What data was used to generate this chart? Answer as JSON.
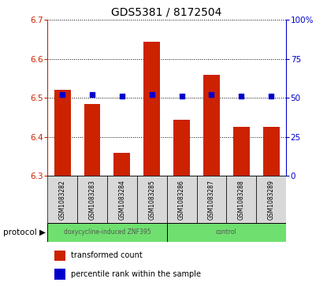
{
  "title": "GDS5381 / 8172504",
  "samples": [
    "GSM1083282",
    "GSM1083283",
    "GSM1083284",
    "GSM1083285",
    "GSM1083286",
    "GSM1083287",
    "GSM1083288",
    "GSM1083289"
  ],
  "red_values": [
    6.52,
    6.485,
    6.36,
    6.645,
    6.445,
    6.56,
    6.425,
    6.425
  ],
  "blue_values": [
    52,
    52,
    51,
    52,
    51,
    52,
    51,
    51
  ],
  "bar_bottom": 6.3,
  "ylim_left": [
    6.3,
    6.7
  ],
  "ylim_right": [
    0,
    100
  ],
  "yticks_left": [
    6.3,
    6.4,
    6.5,
    6.6,
    6.7
  ],
  "yticks_right": [
    0,
    25,
    50,
    75,
    100
  ],
  "protocol_groups": [
    {
      "label": "doxycycline-induced ZNF395",
      "start": 0,
      "end": 4,
      "color": "#6fe06f"
    },
    {
      "label": "control",
      "start": 4,
      "end": 8,
      "color": "#6fe06f"
    }
  ],
  "bar_color": "#cc2200",
  "dot_color": "#0000cc",
  "bar_width": 0.55,
  "dot_size": 25,
  "legend_red_label": "transformed count",
  "legend_blue_label": "percentile rank within the sample",
  "protocol_label": "protocol",
  "left_axis_color": "#cc2200",
  "right_axis_color": "#0000cc",
  "grid_color": "black",
  "sample_bg": "#d8d8d8",
  "plot_bg": "white"
}
